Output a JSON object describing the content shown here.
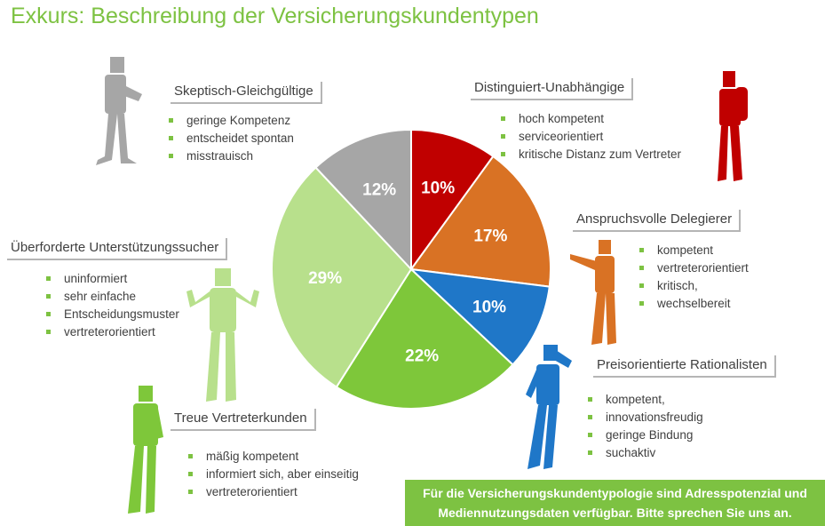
{
  "title": "Exkurs: Beschreibung der Versicherungskundentypen",
  "segments": [
    {
      "title": "Distinguiert-Unabhängige",
      "bullets": [
        "hoch kompetent",
        "serviceorientiert",
        "kritische Distanz zum Vertreter"
      ],
      "color": "#c00000"
    },
    {
      "title": "Anspruchsvolle Delegierer",
      "bullets": [
        "kompetent",
        "vertreterorientiert",
        "kritisch,",
        "wechselbereit"
      ],
      "color": "#d97224"
    },
    {
      "title": "Preisorientierte Rationalisten",
      "bullets": [
        "kompetent,",
        "innovationsfreudig",
        "geringe Bindung",
        "suchaktiv"
      ],
      "color": "#1f77c8"
    },
    {
      "title": "Treue Vertreterkunden",
      "bullets": [
        "mäßig kompetent",
        "informiert sich, aber einseitig",
        "vertreterorientiert"
      ],
      "color": "#7ec73a"
    },
    {
      "title": "Überforderte Unterstützungssucher",
      "bullets": [
        "uninformiert",
        "sehr einfache",
        "Entscheidungsmuster",
        "vertreterorientiert"
      ],
      "color": "#b8e08c"
    },
    {
      "title": "Skeptisch-Gleichgültige",
      "bullets": [
        "geringe Kompetenz",
        "entscheidet spontan",
        "misstrauisch"
      ],
      "color": "#a6a6a6"
    }
  ],
  "chart_data": {
    "type": "pie",
    "categories": [
      "Distinguiert-Unabhängige",
      "Anspruchsvolle Delegierer",
      "Preisorientierte Rationalisten",
      "Treue Vertreterkunden",
      "Überforderte Unterstützungssucher",
      "Skeptisch-Gleichgültige"
    ],
    "values": [
      10,
      17,
      10,
      22,
      29,
      12
    ],
    "labels": [
      "10%",
      "17%",
      "10%",
      "22%",
      "29%",
      "12%"
    ],
    "colors": [
      "#c00000",
      "#d97224",
      "#1f77c8",
      "#7ec73a",
      "#b8e08c",
      "#a6a6a6"
    ],
    "start": "top",
    "direction": "clockwise"
  },
  "banner": {
    "line1": "Für die Versicherungskundentypologie sind Adresspotenzial und",
    "line2": "Mediennutzungsdaten verfügbar. Bitte sprechen Sie uns an."
  }
}
